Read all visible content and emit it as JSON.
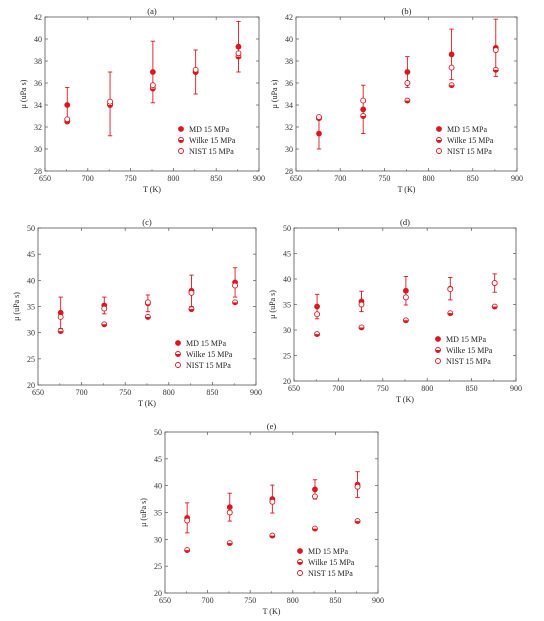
{
  "colors": {
    "marker": "#d9181f",
    "axis": "#555555",
    "text": "#222222"
  },
  "legend_entries": [
    "MD     15 MPa",
    "Wilke  15 MPa",
    "NIST   15 MPa"
  ],
  "chart_data": [
    {
      "type": "scatter",
      "title": "(a)",
      "xlabel": "T (K)",
      "ylabel": "μ (uPa s)",
      "xlim": [
        650,
        900
      ],
      "ylim": [
        28,
        42
      ],
      "xticks": [
        650,
        700,
        750,
        800,
        850,
        900
      ],
      "yticks": [
        28,
        30,
        32,
        34,
        36,
        38,
        40,
        42
      ],
      "legend_position": "bottom-right",
      "series": [
        {
          "name": "MD     15 MPa",
          "marker": "filled-circle",
          "x": [
            676,
            726,
            776,
            826,
            876
          ],
          "y": [
            34.0,
            34.1,
            37.0,
            37.0,
            39.3
          ],
          "err": [
            1.6,
            2.9,
            2.8,
            2.0,
            2.3
          ]
        },
        {
          "name": "Wilke  15 MPa",
          "marker": "half-filled-circle",
          "x": [
            676,
            726,
            776,
            826,
            876
          ],
          "y": [
            32.5,
            34.0,
            35.5,
            37.0,
            38.4
          ]
        },
        {
          "name": "NIST   15 MPa",
          "marker": "open-circle",
          "x": [
            676,
            726,
            776,
            826,
            876
          ],
          "y": [
            32.7,
            34.3,
            35.8,
            37.2,
            38.7
          ]
        }
      ]
    },
    {
      "type": "scatter",
      "title": "(b)",
      "xlabel": "T (K)",
      "ylabel": "μ (uPa s)",
      "xlim": [
        650,
        900
      ],
      "ylim": [
        28,
        42
      ],
      "xticks": [
        650,
        700,
        750,
        800,
        850,
        900
      ],
      "yticks": [
        28,
        30,
        32,
        34,
        36,
        38,
        40,
        42
      ],
      "legend_position": "bottom-right",
      "series": [
        {
          "name": "MD     15 MPa",
          "marker": "filled-circle",
          "x": [
            676,
            726,
            776,
            826,
            876
          ],
          "y": [
            31.4,
            33.6,
            37.0,
            38.6,
            39.2
          ],
          "err": [
            1.4,
            2.2,
            1.4,
            2.3,
            2.6
          ]
        },
        {
          "name": "Wilke  15 MPa",
          "marker": "half-filled-circle",
          "x": [
            676,
            726,
            776,
            826,
            876
          ],
          "y": [
            32.8,
            33.0,
            34.4,
            35.8,
            37.2
          ]
        },
        {
          "name": "NIST   15 MPa",
          "marker": "open-circle",
          "x": [
            676,
            726,
            776,
            826,
            876
          ],
          "y": [
            32.9,
            34.4,
            36.0,
            37.4,
            39.0
          ]
        }
      ]
    },
    {
      "type": "scatter",
      "title": "(c)",
      "xlabel": "T (K)",
      "ylabel": "μ (uPa s)",
      "xlim": [
        650,
        900
      ],
      "ylim": [
        20,
        50
      ],
      "xticks": [
        650,
        700,
        750,
        800,
        850,
        900
      ],
      "yticks": [
        20,
        25,
        30,
        35,
        40,
        45,
        50
      ],
      "legend_position": "bottom-right",
      "series": [
        {
          "name": "MD     15 MPa",
          "marker": "filled-circle",
          "x": [
            676,
            726,
            776,
            826,
            876
          ],
          "y": [
            33.8,
            35.2,
            35.6,
            38.0,
            39.6
          ],
          "err": [
            3.0,
            1.6,
            1.6,
            3.0,
            2.8
          ]
        },
        {
          "name": "Wilke  15 MPa",
          "marker": "half-filled-circle",
          "x": [
            676,
            726,
            776,
            826,
            876
          ],
          "y": [
            30.3,
            31.6,
            33.0,
            34.5,
            35.8
          ]
        },
        {
          "name": "NIST   15 MPa",
          "marker": "open-circle",
          "x": [
            676,
            726,
            776,
            826,
            876
          ],
          "y": [
            33.0,
            34.6,
            35.8,
            37.6,
            39.0
          ]
        }
      ]
    },
    {
      "type": "scatter",
      "title": "(d)",
      "xlabel": "T (K)",
      "ylabel": "μ (uPa s)",
      "xlim": [
        650,
        900
      ],
      "ylim": [
        20,
        50
      ],
      "xticks": [
        650,
        700,
        750,
        800,
        850,
        900
      ],
      "yticks": [
        20,
        25,
        30,
        35,
        40,
        45,
        50
      ],
      "legend_position": "bottom-right",
      "series": [
        {
          "name": "MD     15 MPa",
          "marker": "filled-circle",
          "x": [
            676,
            726,
            776,
            826,
            876
          ],
          "y": [
            34.6,
            35.6,
            37.7,
            38.1,
            39.2
          ],
          "err": [
            2.4,
            2.0,
            2.8,
            2.2,
            1.8
          ]
        },
        {
          "name": "Wilke  15 MPa",
          "marker": "half-filled-circle",
          "x": [
            676,
            726,
            776,
            826,
            876
          ],
          "y": [
            29.2,
            30.5,
            31.9,
            33.3,
            34.6
          ]
        },
        {
          "name": "NIST   15 MPa",
          "marker": "open-circle",
          "x": [
            676,
            726,
            776,
            826,
            876
          ],
          "y": [
            33.1,
            35.0,
            36.4,
            38.0,
            39.2
          ]
        }
      ]
    },
    {
      "type": "scatter",
      "title": "(e)",
      "xlabel": "T (K)",
      "ylabel": "μ (uPa s)",
      "xlim": [
        650,
        900
      ],
      "ylim": [
        20,
        50
      ],
      "xticks": [
        650,
        700,
        750,
        800,
        850,
        900
      ],
      "yticks": [
        20,
        25,
        30,
        35,
        40,
        45,
        50
      ],
      "legend_position": "bottom-right",
      "series": [
        {
          "name": "MD     15 MPa",
          "marker": "filled-circle",
          "x": [
            676,
            726,
            776,
            826,
            876
          ],
          "y": [
            34.0,
            36.0,
            37.5,
            39.3,
            40.2
          ],
          "err": [
            2.8,
            2.6,
            2.6,
            1.8,
            2.4
          ]
        },
        {
          "name": "Wilke  15 MPa",
          "marker": "half-filled-circle",
          "x": [
            676,
            726,
            776,
            826,
            876
          ],
          "y": [
            28.0,
            29.3,
            30.7,
            32.0,
            33.4
          ]
        },
        {
          "name": "NIST   15 MPa",
          "marker": "open-circle",
          "x": [
            676,
            726,
            776,
            826,
            876
          ],
          "y": [
            33.5,
            35.0,
            37.0,
            38.0,
            39.8
          ]
        }
      ]
    }
  ]
}
